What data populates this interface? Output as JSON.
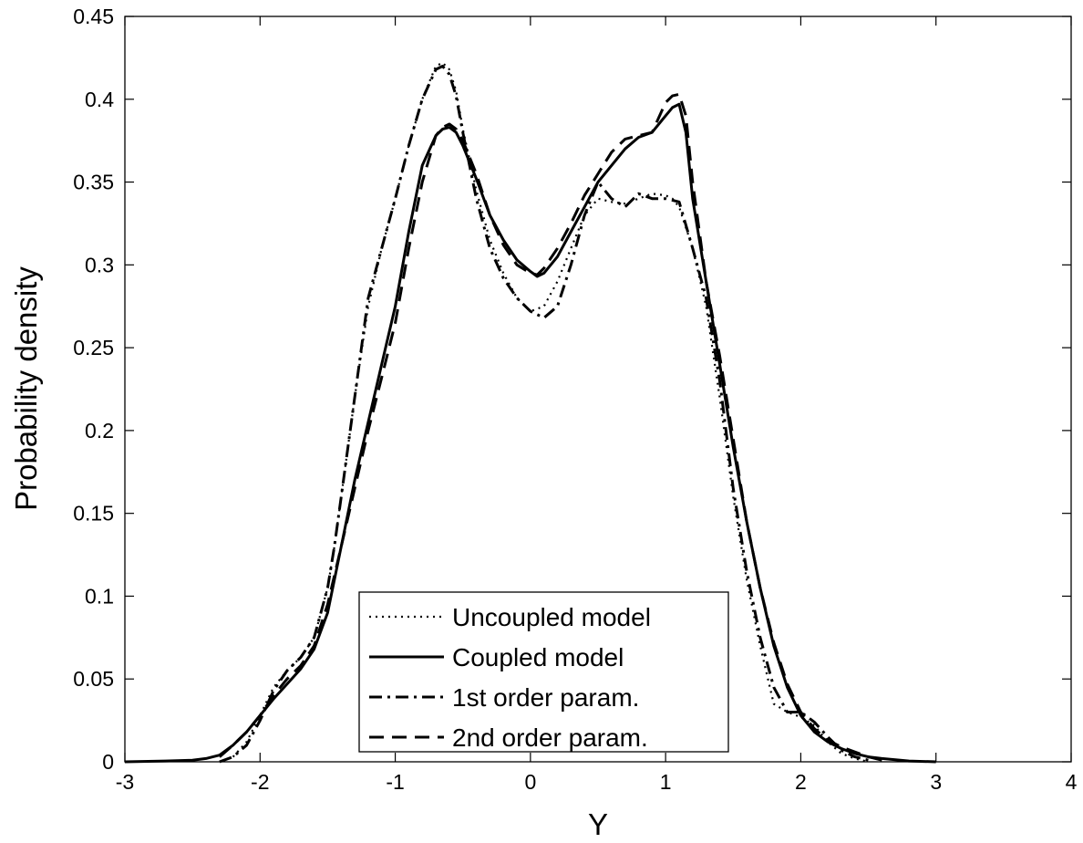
{
  "chart_data": {
    "type": "line",
    "xlabel": "Y",
    "ylabel": "Probability density",
    "xlim": [
      -3,
      4
    ],
    "ylim": [
      0,
      0.45
    ],
    "xticks": [
      -3,
      -2,
      -1,
      0,
      1,
      2,
      3,
      4
    ],
    "yticks": [
      0,
      0.05,
      0.1,
      0.15,
      0.2,
      0.25,
      0.3,
      0.35,
      0.4,
      0.45
    ],
    "xtick_labels": [
      "-3",
      "-2",
      "-1",
      "0",
      "1",
      "2",
      "3",
      "4"
    ],
    "ytick_labels": [
      "0",
      "0.05",
      "0.1",
      "0.15",
      "0.2",
      "0.25",
      "0.3",
      "0.35",
      "0.4",
      "0.45"
    ],
    "grid": false,
    "legend_position": "bottom-center",
    "series": [
      {
        "name": "Uncoupled model",
        "style": "dotted",
        "color": "#000000",
        "x": [
          -2.2,
          -2.1,
          -2.0,
          -1.9,
          -1.8,
          -1.7,
          -1.6,
          -1.5,
          -1.45,
          -1.4,
          -1.3,
          -1.2,
          -1.1,
          -1.0,
          -0.9,
          -0.8,
          -0.7,
          -0.65,
          -0.6,
          -0.55,
          -0.5,
          -0.4,
          -0.3,
          -0.2,
          -0.1,
          0.0,
          0.1,
          0.2,
          0.3,
          0.4,
          0.5,
          0.6,
          0.7,
          0.8,
          0.9,
          1.0,
          1.05,
          1.1,
          1.2,
          1.3,
          1.4,
          1.5,
          1.6,
          1.7,
          1.8,
          1.9,
          2.0,
          2.1,
          2.2,
          2.3,
          2.4,
          2.5
        ],
        "y": [
          0.003,
          0.012,
          0.028,
          0.045,
          0.055,
          0.063,
          0.075,
          0.105,
          0.13,
          0.16,
          0.22,
          0.275,
          0.31,
          0.34,
          0.372,
          0.4,
          0.42,
          0.422,
          0.418,
          0.405,
          0.382,
          0.345,
          0.315,
          0.295,
          0.28,
          0.272,
          0.275,
          0.29,
          0.31,
          0.33,
          0.34,
          0.338,
          0.337,
          0.34,
          0.343,
          0.342,
          0.34,
          0.335,
          0.31,
          0.275,
          0.22,
          0.16,
          0.11,
          0.07,
          0.035,
          0.03,
          0.027,
          0.022,
          0.012,
          0.005,
          0.002,
          0.0
        ]
      },
      {
        "name": "Coupled model",
        "style": "solid",
        "color": "#000000",
        "x": [
          -3.0,
          -2.7,
          -2.5,
          -2.4,
          -2.3,
          -2.2,
          -2.1,
          -2.0,
          -1.9,
          -1.8,
          -1.7,
          -1.6,
          -1.5,
          -1.4,
          -1.3,
          -1.2,
          -1.1,
          -1.0,
          -0.9,
          -0.8,
          -0.7,
          -0.65,
          -0.6,
          -0.55,
          -0.5,
          -0.4,
          -0.3,
          -0.2,
          -0.1,
          0.0,
          0.05,
          0.1,
          0.2,
          0.3,
          0.4,
          0.5,
          0.6,
          0.7,
          0.8,
          0.9,
          1.0,
          1.05,
          1.1,
          1.15,
          1.2,
          1.3,
          1.4,
          1.5,
          1.6,
          1.7,
          1.8,
          1.9,
          2.0,
          2.1,
          2.2,
          2.3,
          2.4,
          2.5,
          2.6,
          2.8,
          3.0
        ],
        "y": [
          0.0,
          0.0005,
          0.001,
          0.002,
          0.004,
          0.01,
          0.018,
          0.028,
          0.038,
          0.047,
          0.056,
          0.068,
          0.09,
          0.13,
          0.17,
          0.205,
          0.24,
          0.275,
          0.32,
          0.36,
          0.378,
          0.382,
          0.383,
          0.38,
          0.372,
          0.352,
          0.33,
          0.315,
          0.303,
          0.296,
          0.293,
          0.295,
          0.305,
          0.32,
          0.335,
          0.35,
          0.36,
          0.37,
          0.377,
          0.38,
          0.39,
          0.395,
          0.397,
          0.38,
          0.34,
          0.29,
          0.24,
          0.19,
          0.145,
          0.105,
          0.07,
          0.045,
          0.028,
          0.018,
          0.012,
          0.008,
          0.005,
          0.003,
          0.002,
          0.0005,
          0.0
        ]
      },
      {
        "name": "1st order param.",
        "style": "dashdot",
        "color": "#000000",
        "x": [
          -2.3,
          -2.2,
          -2.1,
          -2.0,
          -1.9,
          -1.8,
          -1.7,
          -1.6,
          -1.5,
          -1.45,
          -1.4,
          -1.3,
          -1.2,
          -1.1,
          -1.0,
          -0.9,
          -0.8,
          -0.7,
          -0.65,
          -0.6,
          -0.55,
          -0.5,
          -0.4,
          -0.3,
          -0.2,
          -0.1,
          0.0,
          0.1,
          0.2,
          0.3,
          0.4,
          0.5,
          0.6,
          0.7,
          0.8,
          0.9,
          1.0,
          1.1,
          1.2,
          1.3,
          1.4,
          1.5,
          1.6,
          1.7,
          1.8,
          1.9,
          2.0,
          2.1,
          2.2,
          2.3,
          2.4,
          2.5
        ],
        "y": [
          0.0,
          0.003,
          0.01,
          0.025,
          0.043,
          0.055,
          0.063,
          0.075,
          0.105,
          0.13,
          0.16,
          0.22,
          0.28,
          0.31,
          0.34,
          0.372,
          0.4,
          0.418,
          0.42,
          0.415,
          0.402,
          0.38,
          0.34,
          0.31,
          0.292,
          0.28,
          0.272,
          0.268,
          0.275,
          0.3,
          0.33,
          0.35,
          0.34,
          0.335,
          0.343,
          0.34,
          0.34,
          0.338,
          0.31,
          0.28,
          0.23,
          0.165,
          0.115,
          0.075,
          0.045,
          0.03,
          0.03,
          0.024,
          0.015,
          0.007,
          0.003,
          0.001
        ]
      },
      {
        "name": "2nd order param.",
        "style": "dashed",
        "color": "#000000",
        "x": [
          -2.3,
          -2.2,
          -2.1,
          -2.0,
          -1.9,
          -1.8,
          -1.7,
          -1.6,
          -1.5,
          -1.4,
          -1.3,
          -1.2,
          -1.1,
          -1.0,
          -0.9,
          -0.8,
          -0.7,
          -0.65,
          -0.6,
          -0.55,
          -0.5,
          -0.4,
          -0.3,
          -0.2,
          -0.1,
          0.0,
          0.05,
          0.1,
          0.2,
          0.3,
          0.4,
          0.5,
          0.6,
          0.7,
          0.8,
          0.9,
          1.0,
          1.05,
          1.1,
          1.15,
          1.2,
          1.3,
          1.4,
          1.5,
          1.6,
          1.7,
          1.8,
          1.9,
          2.0,
          2.1,
          2.2,
          2.3,
          2.4,
          2.5,
          2.6
        ],
        "y": [
          0.003,
          0.01,
          0.018,
          0.028,
          0.04,
          0.05,
          0.058,
          0.07,
          0.095,
          0.13,
          0.165,
          0.2,
          0.232,
          0.265,
          0.31,
          0.35,
          0.378,
          0.383,
          0.385,
          0.382,
          0.375,
          0.355,
          0.33,
          0.312,
          0.3,
          0.295,
          0.294,
          0.298,
          0.31,
          0.325,
          0.342,
          0.355,
          0.368,
          0.376,
          0.378,
          0.38,
          0.398,
          0.402,
          0.403,
          0.39,
          0.35,
          0.29,
          0.245,
          0.195,
          0.145,
          0.105,
          0.072,
          0.047,
          0.03,
          0.02,
          0.013,
          0.009,
          0.006,
          0.003,
          0.001
        ]
      }
    ]
  }
}
